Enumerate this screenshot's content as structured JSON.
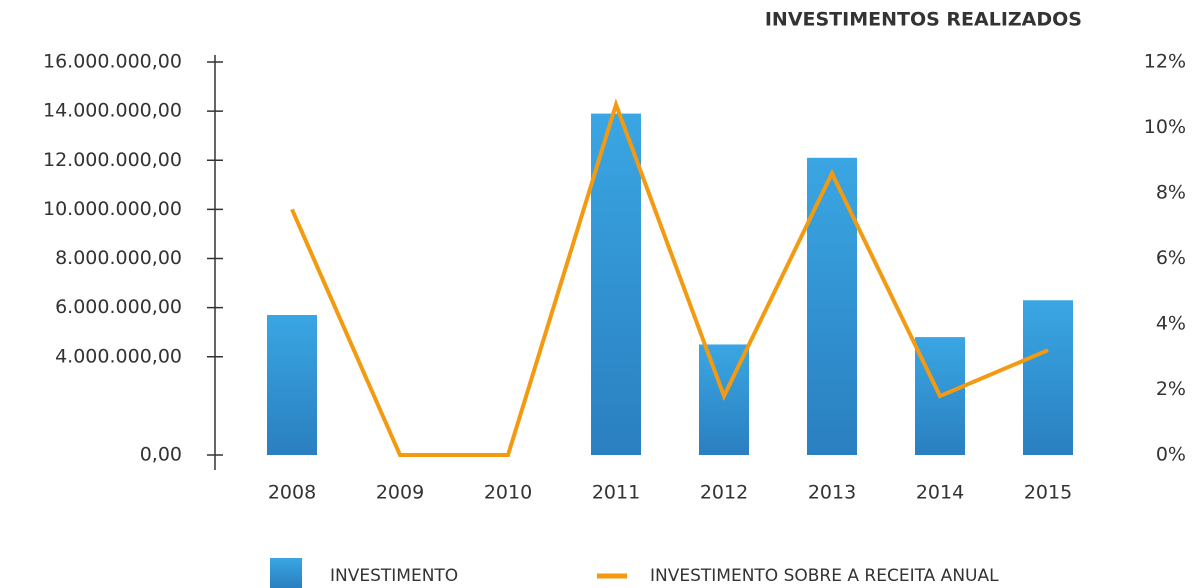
{
  "chart_data": {
    "type": "bar-line",
    "title": "INVESTIMENTOS REALIZADOS",
    "categories": [
      "2008",
      "2009",
      "2010",
      "2011",
      "2012",
      "2013",
      "2014",
      "2015"
    ],
    "series": [
      {
        "name": "INVESTIMENTO",
        "type": "bar",
        "color": "#2e8fd0",
        "values": [
          5700000,
          0,
          0,
          13900000,
          4500000,
          12100000,
          4800000,
          6300000
        ]
      },
      {
        "name": "INVESTIMENTO SOBRE A RECEITA ANUAL",
        "type": "line",
        "axis": "y2",
        "color": "#f39a11",
        "values": [
          7.5,
          0,
          0,
          10.7,
          1.8,
          8.6,
          1.8,
          3.2
        ]
      }
    ],
    "ylim": [
      0,
      16000000
    ],
    "yticks": [
      {
        "value": 0,
        "label": "0,00"
      },
      {
        "value": 4000000,
        "label": "4.000.000,00"
      },
      {
        "value": 6000000,
        "label": "6.000.000,00"
      },
      {
        "value": 8000000,
        "label": "8.000.000,00"
      },
      {
        "value": 10000000,
        "label": "10.000.000,00"
      },
      {
        "value": 12000000,
        "label": "12.000.000,00"
      },
      {
        "value": 14000000,
        "label": "14.000.000,00"
      },
      {
        "value": 16000000,
        "label": "16.000.000,00"
      }
    ],
    "y2lim": [
      0,
      12
    ],
    "y2ticks": [
      {
        "value": 0,
        "label": "0%"
      },
      {
        "value": 2,
        "label": "2%"
      },
      {
        "value": 4,
        "label": "4%"
      },
      {
        "value": 6,
        "label": "6%"
      },
      {
        "value": 8,
        "label": "8%"
      },
      {
        "value": 10,
        "label": "10%"
      },
      {
        "value": 12,
        "label": "12%"
      }
    ]
  }
}
